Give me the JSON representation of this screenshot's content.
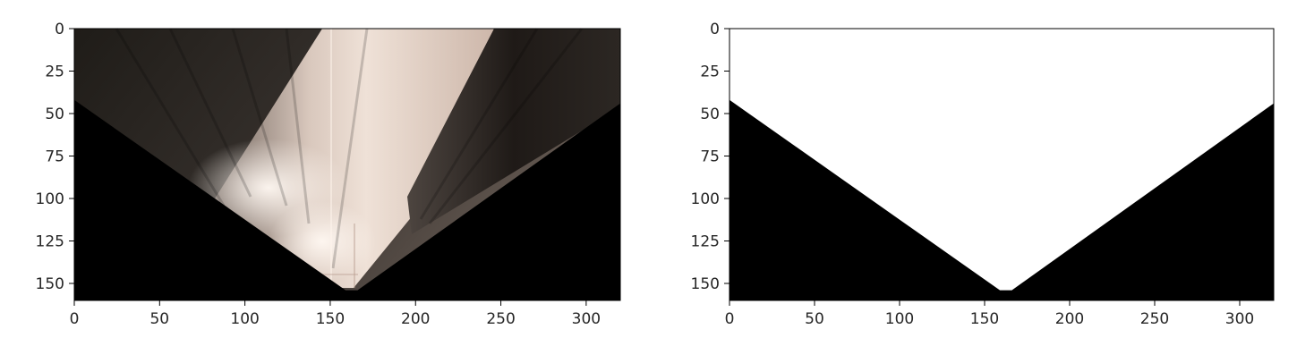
{
  "chart_data": [
    {
      "type": "image",
      "content": "perspective-warped road camera image (bird's-eye view)",
      "xlim": [
        0,
        320
      ],
      "ylim": [
        160,
        0
      ],
      "xticks": [
        0,
        50,
        100,
        150,
        200,
        250,
        300
      ],
      "yticks": [
        0,
        25,
        50,
        75,
        100,
        125,
        150
      ],
      "xtick_labels": [
        "0",
        "50",
        "100",
        "150",
        "200",
        "250",
        "300"
      ],
      "ytick_labels": [
        "0",
        "25",
        "50",
        "75",
        "100",
        "125",
        "150"
      ],
      "black_mask_boundary": [
        [
          0,
          42
        ],
        [
          159,
          154
        ],
        [
          166,
          154
        ],
        [
          320,
          44
        ]
      ],
      "colors": {
        "dark": "#1a1612",
        "light": "#e6d6cb",
        "mask": "#000000"
      }
    },
    {
      "type": "image",
      "content": "binary mask of the warped region",
      "xlim": [
        0,
        320
      ],
      "ylim": [
        160,
        0
      ],
      "xticks": [
        0,
        50,
        100,
        150,
        200,
        250,
        300
      ],
      "yticks": [
        0,
        25,
        50,
        75,
        100,
        125,
        150
      ],
      "xtick_labels": [
        "0",
        "50",
        "100",
        "150",
        "200",
        "250",
        "300"
      ],
      "ytick_labels": [
        "0",
        "25",
        "50",
        "75",
        "100",
        "125",
        "150"
      ],
      "black_mask_boundary": [
        [
          0,
          42
        ],
        [
          159,
          154
        ],
        [
          166,
          154
        ],
        [
          320,
          44
        ]
      ],
      "colors": {
        "foreground": "#ffffff",
        "mask": "#000000"
      }
    }
  ]
}
